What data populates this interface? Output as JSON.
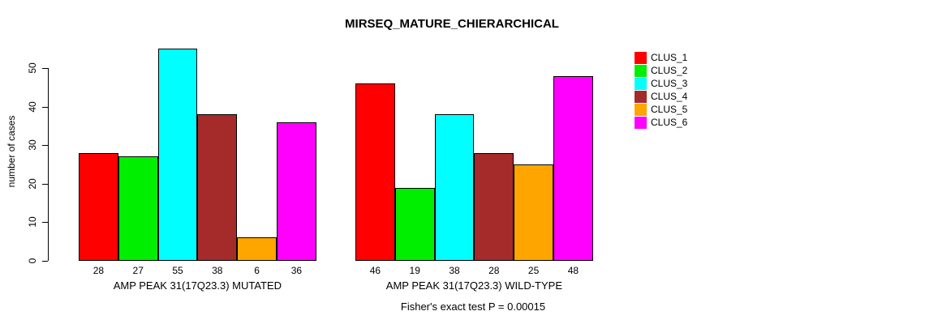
{
  "title": "MIRSEQ_MATURE_CHIERARCHICAL",
  "chart_data": {
    "type": "bar",
    "title": "MIRSEQ_MATURE_CHIERARCHICAL",
    "ylabel": "number of cases",
    "xlabel": "",
    "ylim": [
      0,
      55
    ],
    "yticks": [
      0,
      10,
      20,
      30,
      40,
      50
    ],
    "grid": false,
    "legend_position": "right-inside",
    "bar_value_labels_shown": true,
    "categories": [
      "AMP PEAK 31(17Q23.3) MUTATED",
      "AMP PEAK 31(17Q23.3) WILD-TYPE"
    ],
    "series": [
      {
        "name": "CLUS_1",
        "color": "#FF0000",
        "values": [
          28,
          46
        ]
      },
      {
        "name": "CLUS_2",
        "color": "#00EE00",
        "values": [
          27,
          19
        ]
      },
      {
        "name": "CLUS_3",
        "color": "#00FFFF",
        "values": [
          55,
          38
        ]
      },
      {
        "name": "CLUS_4",
        "color": "#A52A2A",
        "values": [
          38,
          28
        ]
      },
      {
        "name": "CLUS_5",
        "color": "#FFA500",
        "values": [
          6,
          25
        ]
      },
      {
        "name": "CLUS_6",
        "color": "#FF00FF",
        "values": [
          36,
          48
        ]
      }
    ],
    "footnote": "Fisher's exact test P = 0.00015"
  }
}
